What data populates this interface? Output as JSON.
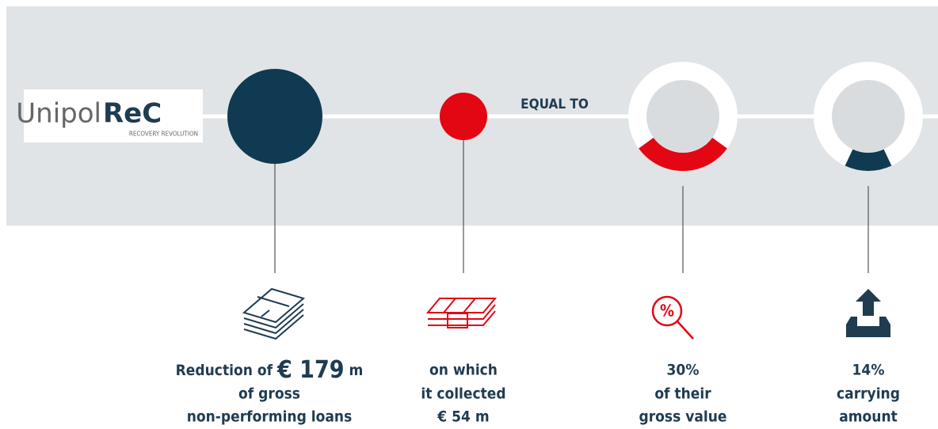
{
  "logo": {
    "name": "Unipol",
    "name_bold": "ReC",
    "tagline": "RECOVERY REVOLUTION"
  },
  "connector": "EQUAL TO",
  "items": [
    {
      "lead": "Reduction of",
      "amount": "€ 179",
      "unit": "m",
      "lines": [
        "of gross",
        "non-performing loans"
      ]
    },
    {
      "lines": [
        "on which",
        "it collected"
      ],
      "amount": "€ 54 m"
    },
    {
      "share": {
        "value": 30,
        "label": "30%"
      },
      "lines": [
        "of their",
        "gross value"
      ]
    },
    {
      "share": {
        "value": 14,
        "label": "14%"
      },
      "lines": [
        "carrying",
        "amount"
      ]
    }
  ]
}
